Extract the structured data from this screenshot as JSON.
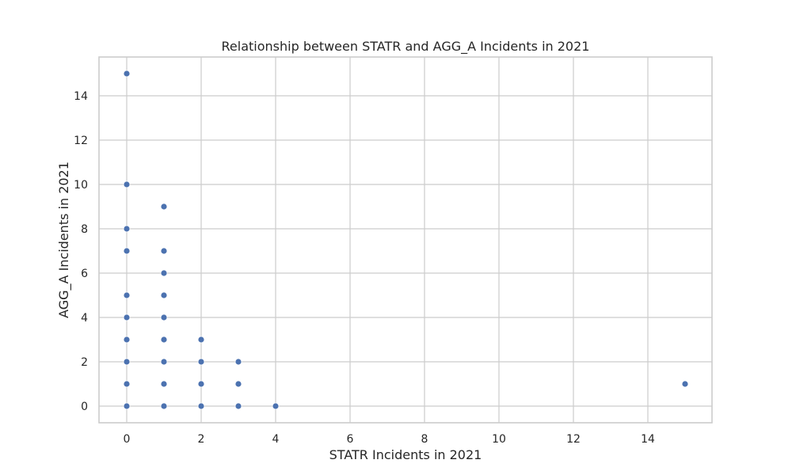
{
  "chart_data": {
    "type": "scatter",
    "title": "Relationship between STATR and AGG_A Incidents in 2021",
    "xlabel": "STATR Incidents in 2021",
    "ylabel": "AGG_A Incidents in 2021",
    "xlim": [
      -0.75,
      15.75
    ],
    "ylim": [
      -0.75,
      15.75
    ],
    "xticks": [
      0,
      2,
      4,
      6,
      8,
      10,
      12,
      14
    ],
    "yticks": [
      0,
      2,
      4,
      6,
      8,
      10,
      12,
      14
    ],
    "grid": true,
    "point_color": "#4c72b0",
    "grid_color": "#cccccc",
    "points": [
      {
        "x": 0,
        "y": 15
      },
      {
        "x": 0,
        "y": 10
      },
      {
        "x": 0,
        "y": 8
      },
      {
        "x": 0,
        "y": 7
      },
      {
        "x": 0,
        "y": 5
      },
      {
        "x": 0,
        "y": 4
      },
      {
        "x": 0,
        "y": 3
      },
      {
        "x": 0,
        "y": 2
      },
      {
        "x": 0,
        "y": 1
      },
      {
        "x": 0,
        "y": 0
      },
      {
        "x": 1,
        "y": 9
      },
      {
        "x": 1,
        "y": 7
      },
      {
        "x": 1,
        "y": 6
      },
      {
        "x": 1,
        "y": 5
      },
      {
        "x": 1,
        "y": 4
      },
      {
        "x": 1,
        "y": 3
      },
      {
        "x": 1,
        "y": 2
      },
      {
        "x": 1,
        "y": 1
      },
      {
        "x": 1,
        "y": 0
      },
      {
        "x": 2,
        "y": 3
      },
      {
        "x": 2,
        "y": 2
      },
      {
        "x": 2,
        "y": 1
      },
      {
        "x": 2,
        "y": 0
      },
      {
        "x": 3,
        "y": 2
      },
      {
        "x": 3,
        "y": 1
      },
      {
        "x": 3,
        "y": 0
      },
      {
        "x": 4,
        "y": 0
      },
      {
        "x": 15,
        "y": 1
      }
    ]
  }
}
